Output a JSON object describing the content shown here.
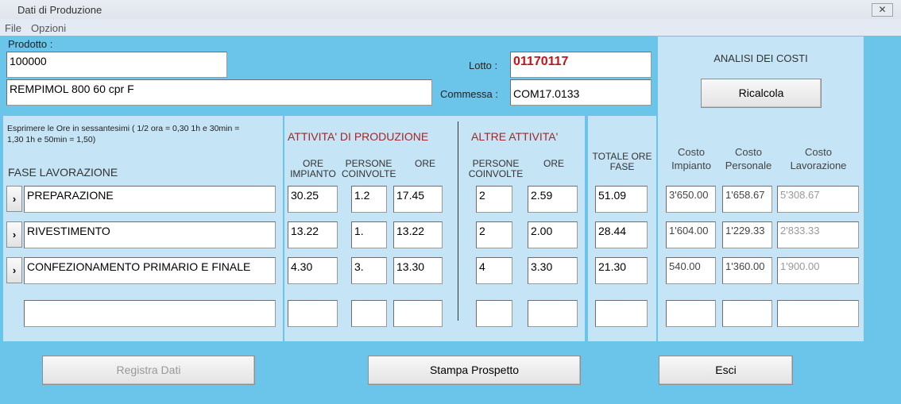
{
  "window": {
    "title": "Dati di Produzione",
    "close_icon": "close-x"
  },
  "menu": [
    "File",
    "Opzioni"
  ],
  "header": {
    "prodotto_label": "Prodotto :",
    "codice": "100000",
    "descrizione": "REMPIMOL 800 60 cpr F",
    "lotto_label": "Lotto :",
    "lotto": "01170117",
    "commessa_label": "Commessa :",
    "commessa": "COM17.0133",
    "lotto_color": "#c0141c"
  },
  "analisi": {
    "title": "ANALISI DEI COSTI",
    "ricalcola": "Ricalcola"
  },
  "note": "Esprimere le Ore in sessantesimi  ( 1/2 ora = 0,30    1h e 30min = 1,30    1h e 50min = 1,50)",
  "headers": {
    "fase": "FASE LAVORAZIONE",
    "produzione": "ATTIVITA' DI PRODUZIONE",
    "altre": "ALTRE ATTIVITA'",
    "ore_impianto": "ORE IMPIANTO",
    "persone": "PERSONE COINVOLTE",
    "ore": "ORE",
    "persone_altre": "PERSONE COINVOLTE",
    "ore_altre": "ORE",
    "totale": "TOTALE ORE FASE",
    "costo_impianto": "Costo Impianto",
    "costo_personale": "Costo Personale",
    "costo_lavorazione": "Costo Lavorazione"
  },
  "rows": [
    {
      "fase": "PREPARAZIONE",
      "ore_impianto": "30.25",
      "persone": "1.2",
      "ore": "17.45",
      "persone_altre": "2",
      "ore_altre": "2.59",
      "totale": "51.09",
      "costo_impianto": "3'650.00",
      "costo_personale": "1'658.67",
      "costo_lavorazione": "5'308.67"
    },
    {
      "fase": "RIVESTIMENTO",
      "ore_impianto": "13.22",
      "persone": "1.",
      "ore": "13.22",
      "persone_altre": "2",
      "ore_altre": "2.00",
      "totale": "28.44",
      "costo_impianto": "1'604.00",
      "costo_personale": "1'229.33",
      "costo_lavorazione": "2'833.33"
    },
    {
      "fase": "CONFEZIONAMENTO PRIMARIO E FINALE",
      "ore_impianto": "4.30",
      "persone": "3.",
      "ore": "13.30",
      "persone_altre": "4",
      "ore_altre": "3.30",
      "totale": "21.30",
      "costo_impianto": "540.00",
      "costo_personale": "1'360.00",
      "costo_lavorazione": "1'900.00"
    },
    {
      "fase": "",
      "ore_impianto": "",
      "persone": "",
      "ore": "",
      "persone_altre": "",
      "ore_altre": "",
      "totale": "",
      "costo_impianto": "",
      "costo_personale": "",
      "costo_lavorazione": ""
    }
  ],
  "row_button": "›",
  "buttons": {
    "registra": "Registra Dati",
    "stampa": "Stampa Prospetto",
    "esci": "Esci"
  }
}
